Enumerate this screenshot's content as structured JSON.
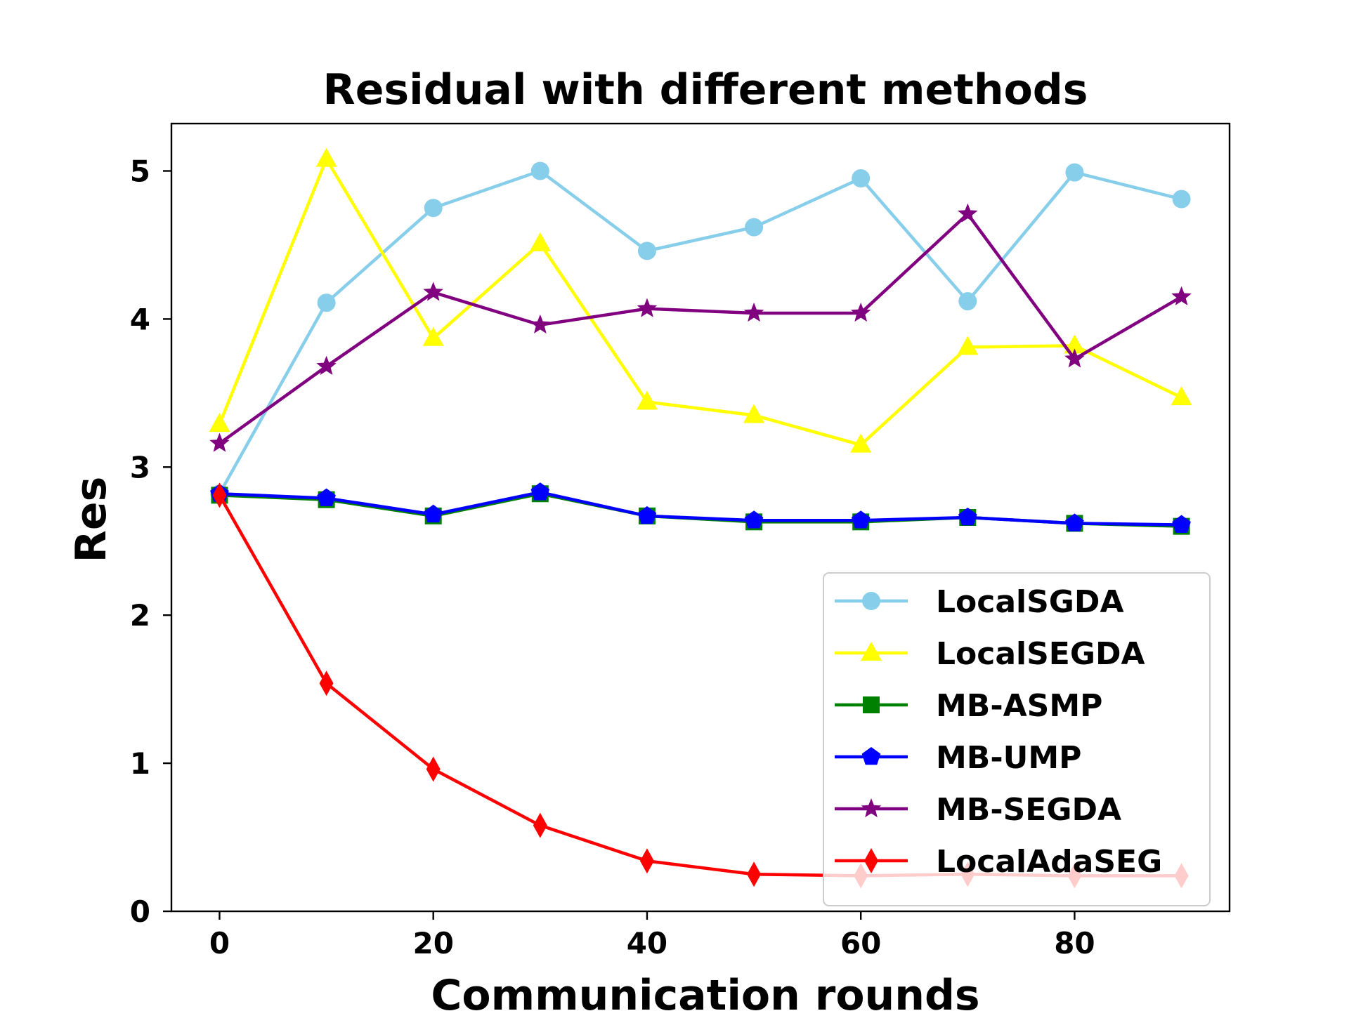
{
  "chart_data": {
    "type": "line",
    "title": "Residual with different methods",
    "xlabel": "Communication rounds",
    "ylabel": "Res",
    "xlim": [
      -4.5,
      94.5
    ],
    "ylim": [
      0,
      5.32
    ],
    "xticks": [
      0,
      20,
      40,
      60,
      80
    ],
    "yticks": [
      0,
      1,
      2,
      3,
      4,
      5
    ],
    "grid": false,
    "legend_position": "lower-right",
    "x": [
      0,
      10,
      20,
      30,
      40,
      50,
      60,
      70,
      80,
      90
    ],
    "series": [
      {
        "name": "LocalSGDA",
        "color": "#87CEEB",
        "marker": "circle",
        "values": [
          2.82,
          4.11,
          4.75,
          5.0,
          4.46,
          4.62,
          4.95,
          4.12,
          4.99,
          4.81
        ]
      },
      {
        "name": "LocalSEGDA",
        "color": "#FFFF00",
        "marker": "triangle",
        "values": [
          3.29,
          5.08,
          3.87,
          4.51,
          3.44,
          3.35,
          3.15,
          3.81,
          3.82,
          3.47
        ]
      },
      {
        "name": "MB-ASMP",
        "color": "#008000",
        "marker": "square",
        "values": [
          2.81,
          2.78,
          2.67,
          2.82,
          2.67,
          2.63,
          2.63,
          2.66,
          2.62,
          2.6
        ]
      },
      {
        "name": "MB-UMP",
        "color": "#0000FF",
        "marker": "pentagon",
        "values": [
          2.82,
          2.79,
          2.68,
          2.83,
          2.67,
          2.64,
          2.64,
          2.66,
          2.62,
          2.61
        ]
      },
      {
        "name": "MB-SEGDA",
        "color": "#800080",
        "marker": "star",
        "values": [
          3.16,
          3.68,
          4.18,
          3.96,
          4.07,
          4.04,
          4.04,
          4.71,
          3.73,
          4.15
        ]
      },
      {
        "name": "LocalAdaSEG",
        "color": "#FF0000",
        "marker": "diamond",
        "values": [
          2.81,
          1.54,
          0.96,
          0.58,
          0.34,
          0.25,
          0.24,
          0.25,
          0.24,
          0.24
        ]
      }
    ]
  }
}
